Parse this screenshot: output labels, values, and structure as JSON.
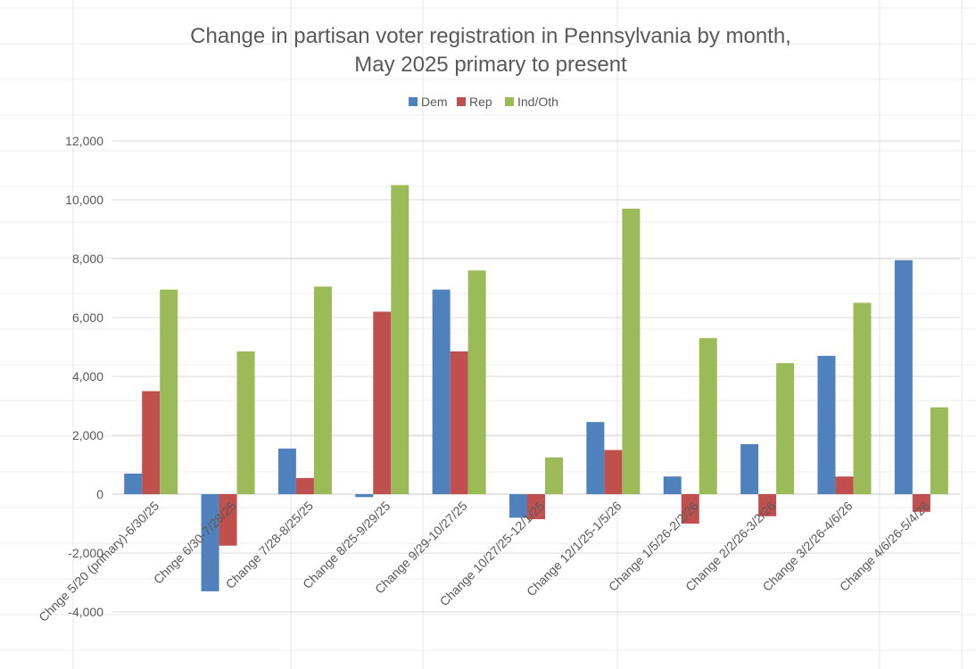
{
  "chart_data": {
    "type": "bar",
    "title_lines": [
      "Change in partisan voter registration in Pennsylvania by month,",
      "May 2025 primary to present"
    ],
    "categories": [
      "Chnge 5/20 (primary)-6/30/25",
      "Chnge 6/30-7/28/25",
      "Change 7/28-8/25/25",
      "Change 8/25-9/29/25",
      "Change 9/29-10/27/25",
      "Change 10/27/25-12/1/25",
      "Change 12/1/25-1/5/26",
      "Change 1/5/26-2/2/26",
      "Change 2/2/26-3/2/26",
      "Change 3/2/26-4/6/26",
      "Change 4/6/26-5/4/26"
    ],
    "series": [
      {
        "name": "Dem",
        "color": "#4f81bd",
        "values": [
          700,
          -3300,
          1550,
          -100,
          6950,
          -800,
          2450,
          600,
          1700,
          4700,
          7950
        ]
      },
      {
        "name": "Rep",
        "color": "#c0504d",
        "values": [
          3500,
          -1750,
          550,
          6200,
          4850,
          -850,
          1500,
          -1000,
          -750,
          600,
          -600
        ]
      },
      {
        "name": "Ind/Oth",
        "color": "#9bbb59",
        "values": [
          6950,
          4850,
          7050,
          10500,
          7600,
          1250,
          9700,
          5300,
          4450,
          6500,
          2950
        ]
      }
    ],
    "ylim": [
      -4000,
      12000
    ],
    "yticks": [
      -4000,
      -2000,
      0,
      2000,
      4000,
      6000,
      8000,
      10000,
      12000
    ],
    "ytick_labels": [
      "-4,000",
      "-2,000",
      "0",
      "2,000",
      "4,000",
      "6,000",
      "8,000",
      "10,000",
      "12,000"
    ],
    "xlabel": "",
    "ylabel": "",
    "legend_position": "top-center",
    "grid": true
  }
}
